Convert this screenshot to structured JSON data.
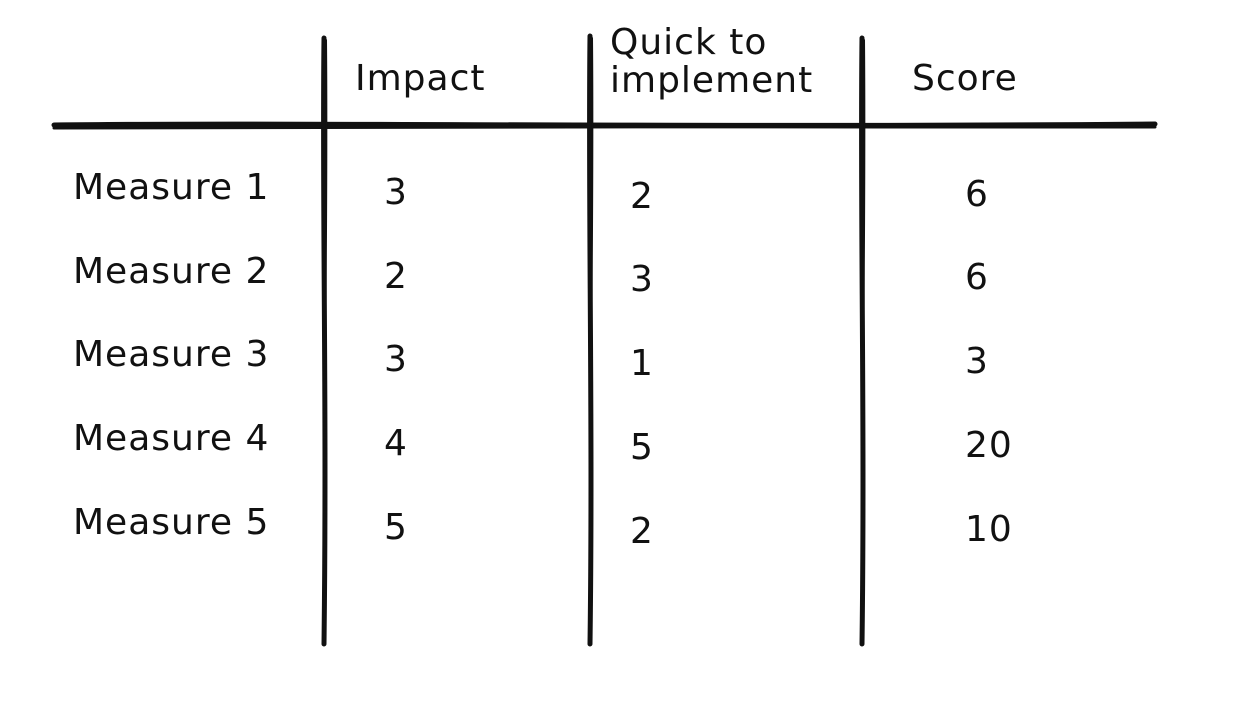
{
  "table": {
    "headers": {
      "impact": "Impact",
      "quick": "Quick to implement",
      "score": "Score"
    },
    "rows": [
      {
        "label": "Measure 1",
        "impact": "3",
        "quick": "2",
        "score": "6"
      },
      {
        "label": "Measure 2",
        "impact": "2",
        "quick": "3",
        "score": "6"
      },
      {
        "label": "Measure 3",
        "impact": "3",
        "quick": "1",
        "score": "3"
      },
      {
        "label": "Measure 4",
        "impact": "4",
        "quick": "5",
        "score": "20"
      },
      {
        "label": "Measure 5",
        "impact": "5",
        "quick": "2",
        "score": "10"
      }
    ]
  },
  "colors": {
    "ink": "#111111",
    "background": "#ffffff"
  }
}
